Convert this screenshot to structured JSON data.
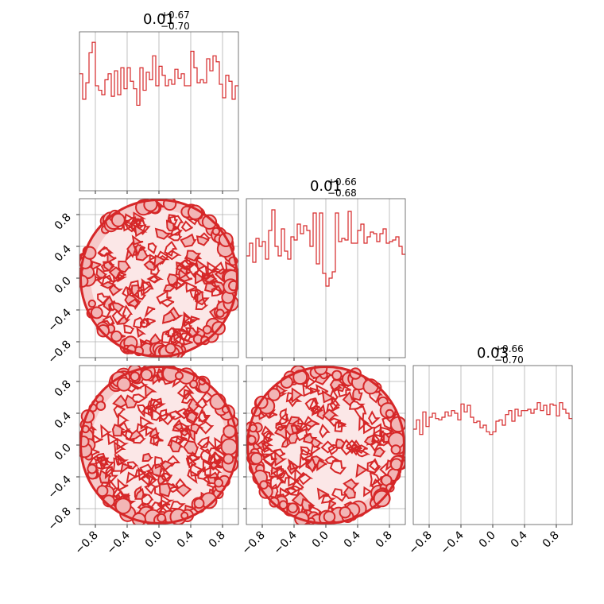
{
  "chart_data": {
    "type": "corner",
    "accent_color": "#d62728",
    "grid": true,
    "ticks": [
      "−0.8",
      "−0.4",
      "0.0",
      "0.4",
      "0.8"
    ],
    "tick_values": [
      -0.8,
      -0.4,
      0.0,
      0.4,
      0.8
    ],
    "range": [
      -1.0,
      1.0
    ],
    "parameters": [
      {
        "median": "0.01",
        "upper": "+0.67",
        "lower": "−0.70"
      },
      {
        "median": "0.01",
        "upper": "+0.66",
        "lower": "−0.68"
      },
      {
        "median": "0.03",
        "upper": "+0.66",
        "lower": "−0.70"
      }
    ],
    "histograms": [
      {
        "bin_edges": [
          -1.0,
          -0.96,
          -0.92,
          -0.88,
          -0.84,
          -0.8,
          -0.76,
          -0.72,
          -0.68,
          -0.64,
          -0.6,
          -0.56,
          -0.52,
          -0.48,
          -0.44,
          -0.4,
          -0.36,
          -0.32,
          -0.28,
          -0.24,
          -0.2,
          -0.16,
          -0.12,
          -0.08,
          -0.04,
          0.0,
          0.04,
          0.08,
          0.12,
          0.16,
          0.2,
          0.24,
          0.28,
          0.32,
          0.36,
          0.4,
          0.44,
          0.48,
          0.52,
          0.56,
          0.6,
          0.64,
          0.68,
          0.72,
          0.76,
          0.8,
          0.84,
          0.88,
          0.92,
          0.96,
          1.0
        ],
        "values": [
          0.78,
          0.61,
          0.72,
          0.92,
          0.99,
          0.7,
          0.67,
          0.64,
          0.74,
          0.78,
          0.63,
          0.8,
          0.64,
          0.82,
          0.68,
          0.82,
          0.73,
          0.68,
          0.57,
          0.82,
          0.67,
          0.79,
          0.74,
          0.9,
          0.7,
          0.83,
          0.77,
          0.7,
          0.74,
          0.71,
          0.81,
          0.75,
          0.78,
          0.7,
          0.7,
          0.93,
          0.82,
          0.72,
          0.74,
          0.72,
          0.88,
          0.8,
          0.9,
          0.86,
          0.71,
          0.62,
          0.77,
          0.73,
          0.61,
          0.7
        ],
        "ymax": 1.06
      },
      {
        "bin_edges": [
          -1.0,
          -0.96,
          -0.92,
          -0.88,
          -0.84,
          -0.8,
          -0.76,
          -0.72,
          -0.68,
          -0.64,
          -0.6,
          -0.56,
          -0.52,
          -0.48,
          -0.44,
          -0.4,
          -0.36,
          -0.32,
          -0.28,
          -0.24,
          -0.2,
          -0.16,
          -0.12,
          -0.08,
          -0.04,
          0.0,
          0.04,
          0.08,
          0.12,
          0.16,
          0.2,
          0.24,
          0.28,
          0.32,
          0.36,
          0.4,
          0.44,
          0.48,
          0.52,
          0.56,
          0.6,
          0.64,
          0.68,
          0.72,
          0.76,
          0.8,
          0.84,
          0.88,
          0.92,
          0.96,
          1.0
        ],
        "values": [
          0.64,
          0.72,
          0.6,
          0.75,
          0.7,
          0.73,
          0.62,
          0.8,
          0.93,
          0.7,
          0.64,
          0.81,
          0.67,
          0.62,
          0.76,
          0.74,
          0.84,
          0.78,
          0.83,
          0.8,
          0.7,
          0.91,
          0.59,
          0.91,
          0.53,
          0.45,
          0.5,
          0.54,
          0.91,
          0.73,
          0.75,
          0.74,
          0.92,
          0.72,
          0.72,
          0.8,
          0.84,
          0.72,
          0.76,
          0.79,
          0.78,
          0.73,
          0.78,
          0.81,
          0.72,
          0.73,
          0.74,
          0.76,
          0.7,
          0.65
        ],
        "ymax": 1.0
      },
      {
        "bin_edges": [
          -1.0,
          -0.96,
          -0.92,
          -0.88,
          -0.84,
          -0.8,
          -0.76,
          -0.72,
          -0.68,
          -0.64,
          -0.6,
          -0.56,
          -0.52,
          -0.48,
          -0.44,
          -0.4,
          -0.36,
          -0.32,
          -0.28,
          -0.24,
          -0.2,
          -0.16,
          -0.12,
          -0.08,
          -0.04,
          0.0,
          0.04,
          0.08,
          0.12,
          0.16,
          0.2,
          0.24,
          0.28,
          0.32,
          0.36,
          0.4,
          0.44,
          0.48,
          0.52,
          0.56,
          0.6,
          0.64,
          0.68,
          0.72,
          0.76,
          0.8,
          0.84,
          0.88,
          0.92,
          0.96,
          1.0
        ],
        "values": [
          0.72,
          0.79,
          0.68,
          0.85,
          0.74,
          0.81,
          0.84,
          0.8,
          0.79,
          0.81,
          0.85,
          0.82,
          0.86,
          0.84,
          0.79,
          0.91,
          0.85,
          0.9,
          0.81,
          0.77,
          0.78,
          0.73,
          0.75,
          0.7,
          0.68,
          0.7,
          0.78,
          0.79,
          0.75,
          0.83,
          0.86,
          0.78,
          0.87,
          0.82,
          0.86,
          0.86,
          0.87,
          0.84,
          0.87,
          0.92,
          0.86,
          0.9,
          0.83,
          0.91,
          0.9,
          0.82,
          0.92,
          0.87,
          0.84,
          0.8
        ],
        "ymax": 1.2
      }
    ],
    "scatter_panels": [
      {
        "x_param": 0,
        "y_param": 1,
        "shape": "disc",
        "radius": 1.0
      },
      {
        "x_param": 0,
        "y_param": 2,
        "shape": "disc",
        "radius": 1.0
      },
      {
        "x_param": 1,
        "y_param": 2,
        "shape": "disc",
        "radius": 1.0
      }
    ]
  }
}
